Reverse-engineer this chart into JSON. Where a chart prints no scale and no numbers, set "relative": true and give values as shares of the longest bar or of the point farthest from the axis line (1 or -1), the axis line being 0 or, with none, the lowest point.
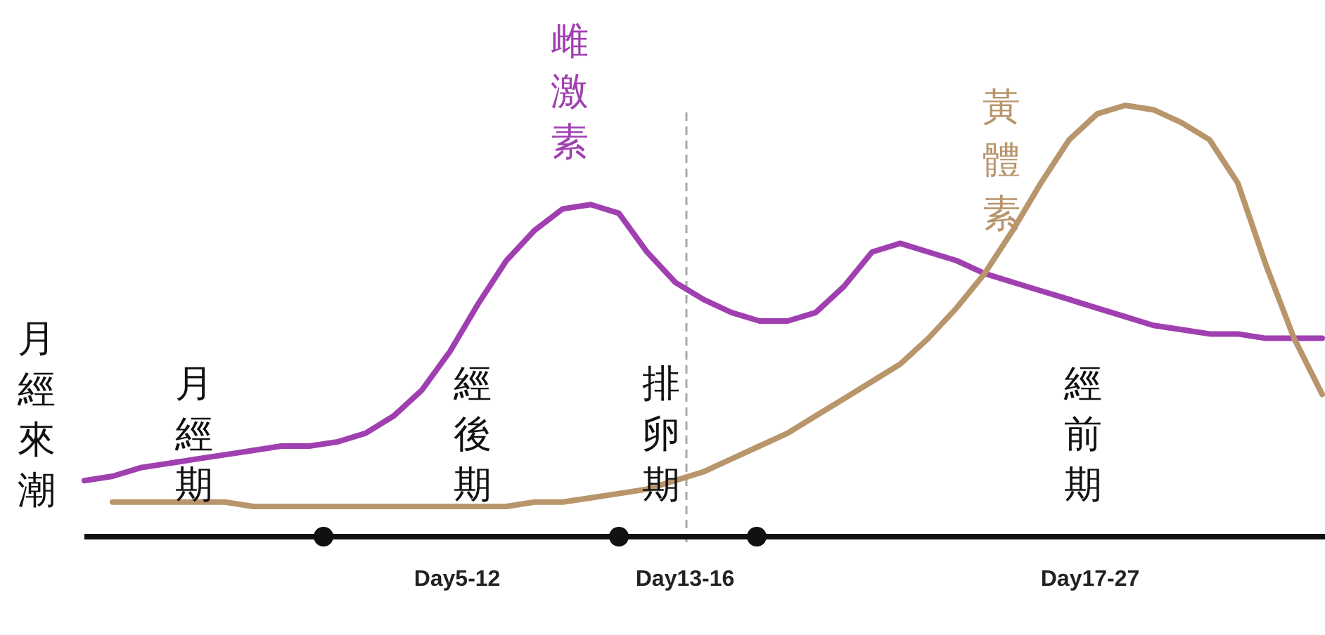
{
  "chart_data": {
    "type": "line",
    "relative": true,
    "categories": [
      null,
      null,
      null,
      null,
      null,
      null,
      null,
      null,
      null,
      null,
      null,
      null,
      null,
      null,
      null,
      null,
      null,
      null,
      null,
      null,
      null,
      null,
      null,
      null,
      null,
      null,
      null,
      null,
      null,
      null,
      null,
      null,
      null,
      null,
      null,
      null,
      null,
      null,
      null,
      null,
      null,
      null,
      null,
      null,
      null
    ],
    "series": [
      {
        "name": "雌激素",
        "color": "#a040b0",
        "values": [
          0.13,
          0.14,
          0.16,
          0.17,
          0.18,
          0.19,
          0.2,
          0.21,
          0.21,
          0.22,
          0.24,
          0.28,
          0.34,
          0.43,
          0.54,
          0.64,
          0.71,
          0.76,
          0.77,
          0.75,
          0.66,
          0.59,
          0.55,
          0.52,
          0.5,
          0.5,
          0.52,
          0.58,
          0.66,
          0.68,
          0.66,
          0.64,
          0.61,
          0.59,
          0.57,
          0.55,
          0.53,
          0.51,
          0.49,
          0.48,
          0.47,
          0.47,
          0.46,
          0.46,
          0.46
        ]
      },
      {
        "name": "黃體素",
        "color": "#b8956a",
        "values": [
          null,
          0.08,
          0.08,
          0.08,
          0.08,
          0.08,
          0.07,
          0.07,
          0.07,
          0.07,
          0.07,
          0.07,
          0.07,
          0.07,
          0.07,
          0.07,
          0.08,
          0.08,
          0.09,
          0.1,
          0.11,
          0.13,
          0.15,
          0.18,
          0.21,
          0.24,
          0.28,
          0.32,
          0.36,
          0.4,
          0.46,
          0.53,
          0.61,
          0.71,
          0.82,
          0.92,
          0.98,
          1,
          0.99,
          0.96,
          0.92,
          0.82,
          0.63,
          0.46,
          0.33
        ]
      }
    ],
    "annotations": [
      "月經來潮",
      "月經期",
      "經後期",
      "排卵期",
      "經前期",
      "Day5-12",
      "Day13-16",
      "Day17-27"
    ],
    "legend": false
  }
}
